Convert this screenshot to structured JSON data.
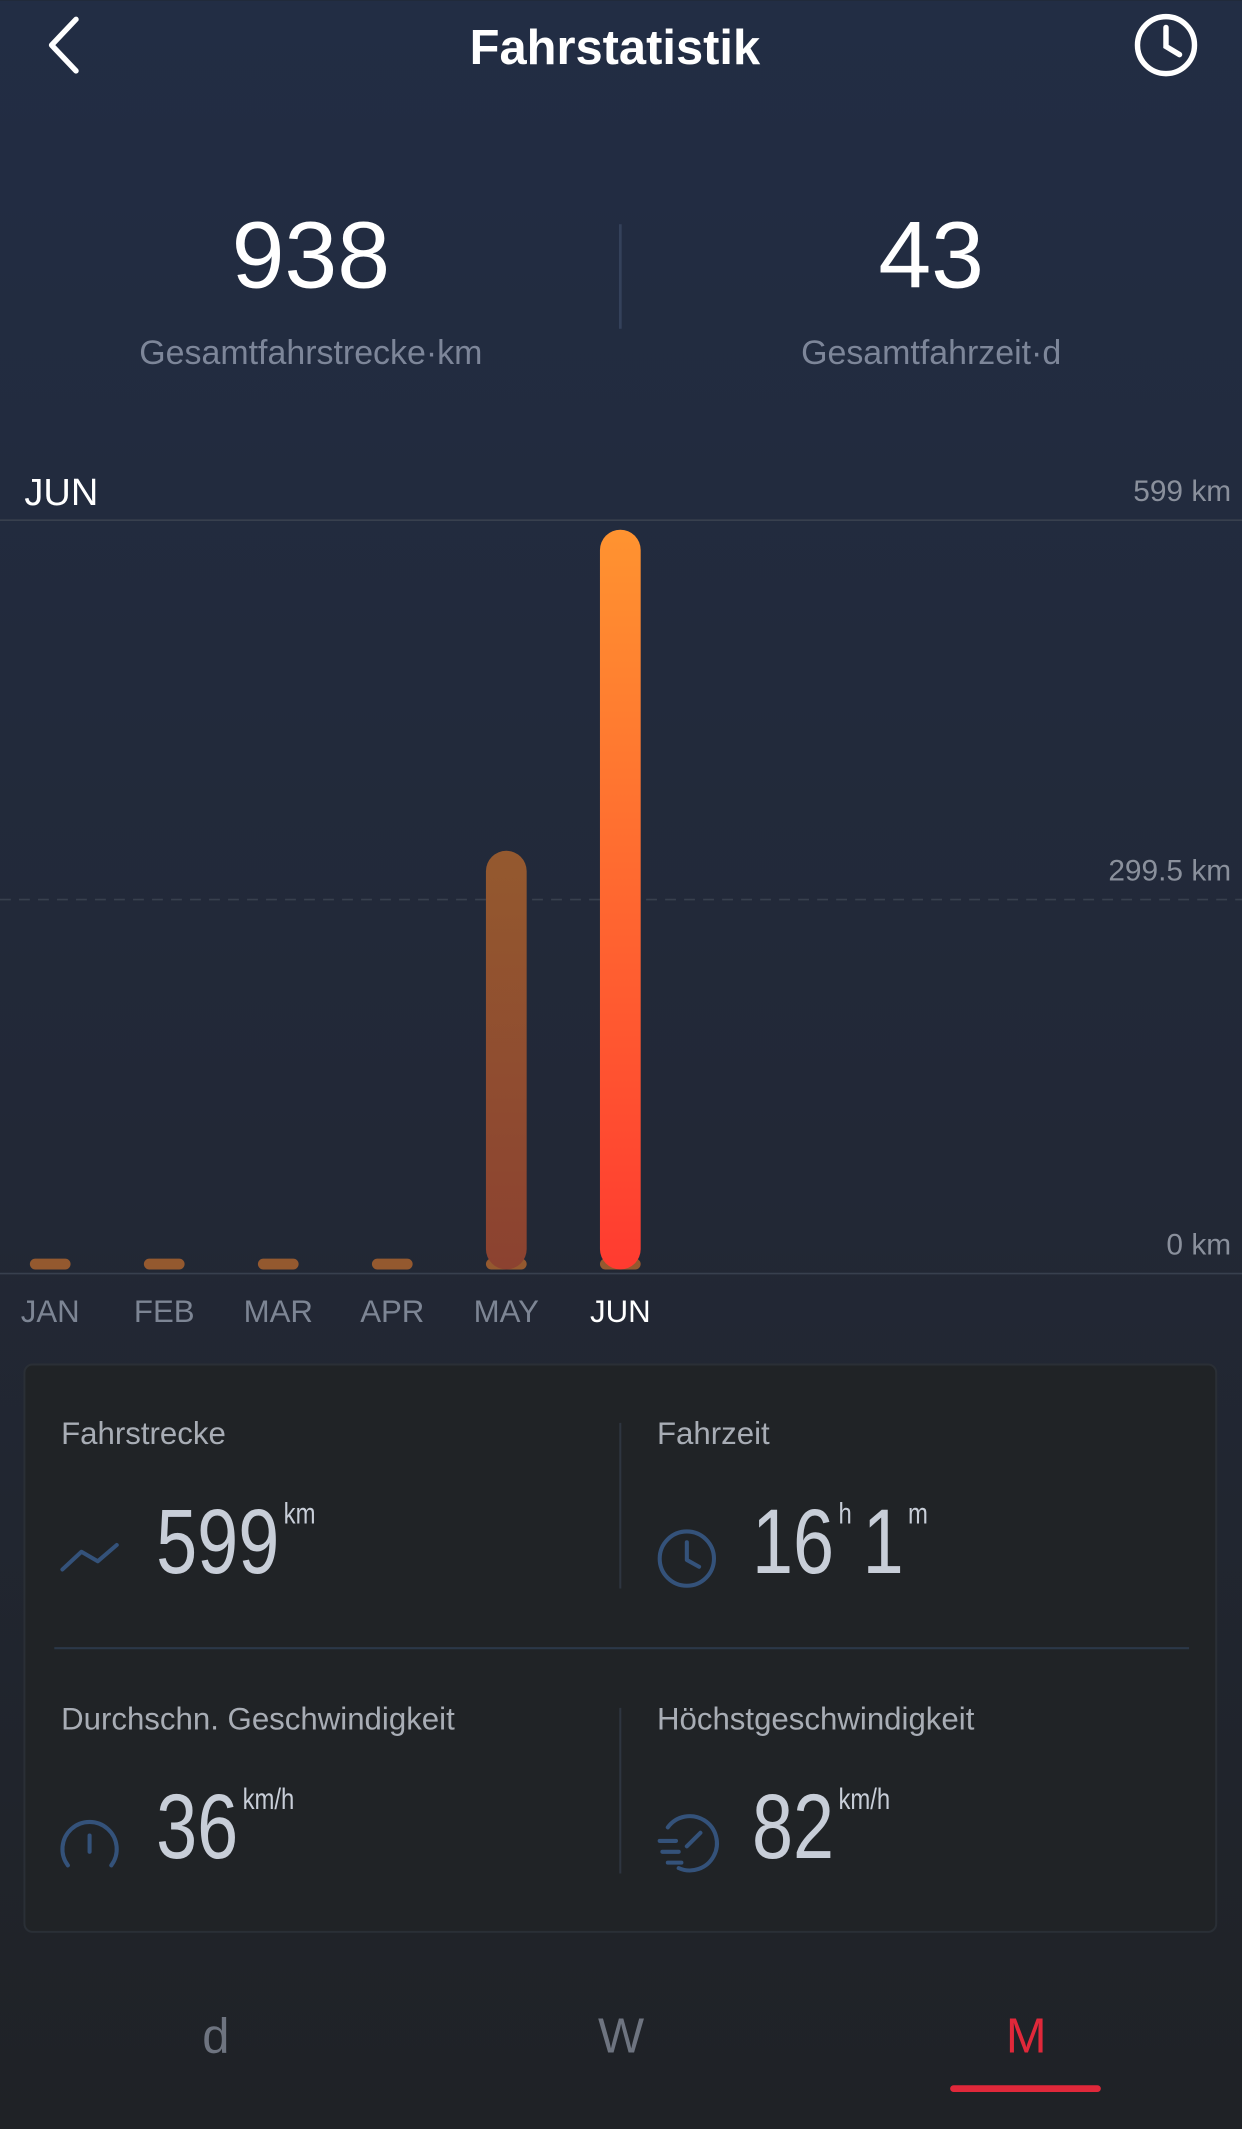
{
  "header": {
    "title": "Fahrstatistik"
  },
  "summary": [
    {
      "value": 938,
      "label": "Gesamtfahrstrecke·km"
    },
    {
      "value": 43,
      "label": "Gesamtfahrzeit·d"
    }
  ],
  "chart_data": {
    "type": "bar",
    "selected": "JUN",
    "categories": [
      "JAN",
      "FEB",
      "MAR",
      "APR",
      "MAY",
      "JUN"
    ],
    "values": [
      0,
      0,
      0,
      0,
      339,
      599
    ],
    "colors": [
      "#94592f",
      "#8c4230"
    ],
    "highlight_colors": [
      "#ff9330",
      "#ff3b30"
    ],
    "ylim": [
      0,
      599
    ],
    "yticks": [
      {
        "value": 0,
        "label": "0 km"
      },
      {
        "value": 299.5,
        "label": "299.5 km"
      },
      {
        "value": 599,
        "label": "599 km"
      }
    ],
    "grid": true
  },
  "stats": [
    {
      "label": "Fahrstrecke",
      "parts": [
        {
          "value": 599,
          "unit": "km"
        }
      ]
    },
    {
      "label": "Fahrzeit",
      "parts": [
        {
          "value": 16,
          "unit": "h"
        },
        {
          "value": 1,
          "unit": "m"
        }
      ]
    },
    {
      "label": "Durchschn. Geschwindigkeit",
      "parts": [
        {
          "value": 36,
          "unit": "km/h"
        }
      ]
    },
    {
      "label": "Höchstgeschwindigkeit",
      "parts": [
        {
          "value": 82,
          "unit": "km/h"
        }
      ]
    }
  ],
  "tabs": {
    "items": [
      "d",
      "W",
      "M"
    ],
    "active": 2
  }
}
